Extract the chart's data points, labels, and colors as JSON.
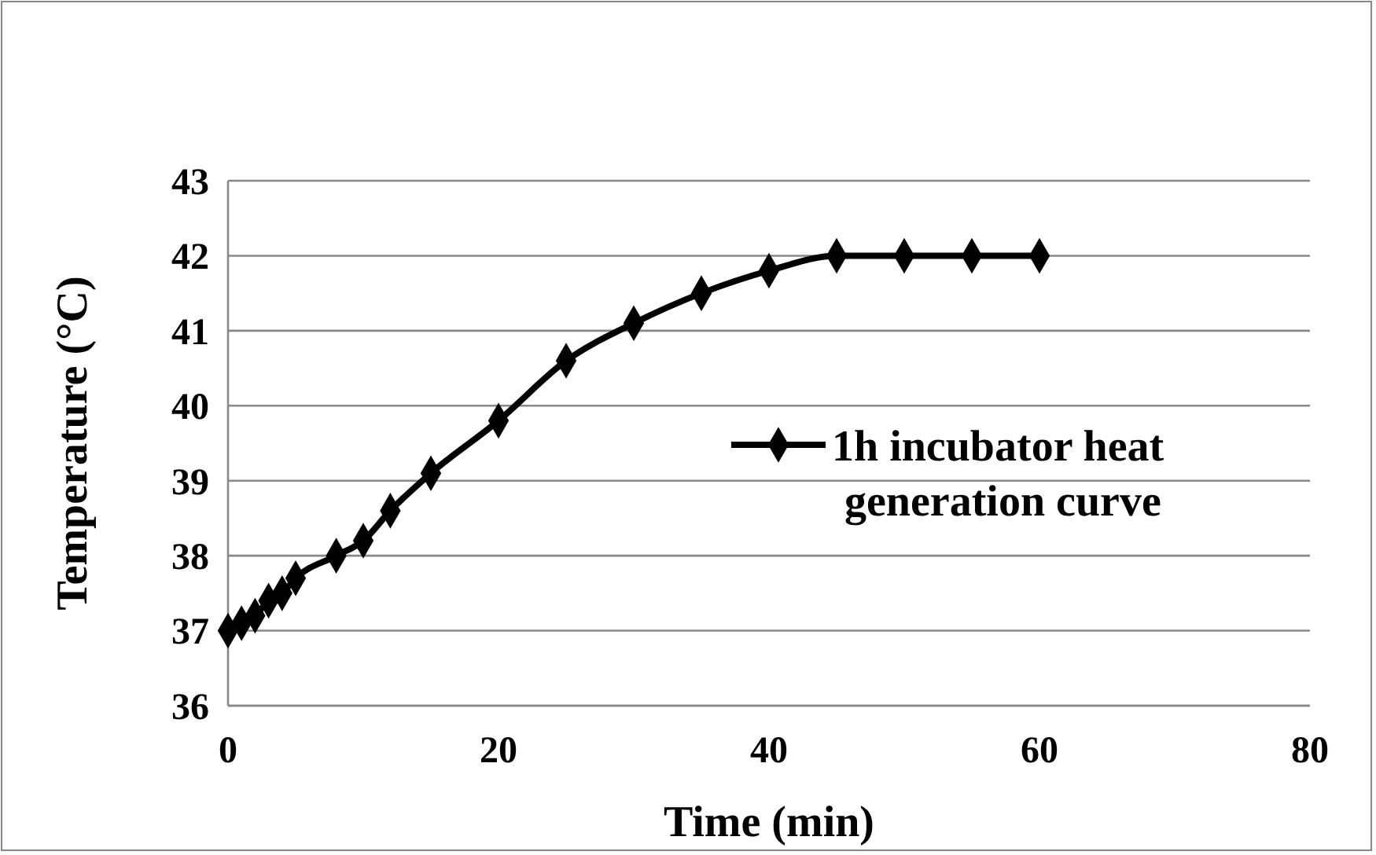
{
  "chart_data": {
    "type": "line",
    "xlabel": "Time (min)",
    "ylabel": "Temperature (°C)",
    "x": [
      0,
      1,
      2,
      3,
      4,
      5,
      8,
      10,
      12,
      15,
      20,
      25,
      30,
      35,
      40,
      45,
      50,
      55,
      60
    ],
    "series": [
      {
        "name": "1h incubator heat generation curve",
        "color": "#000000",
        "values": [
          37,
          37.1,
          37.2,
          37.4,
          37.5,
          37.7,
          38,
          38.2,
          38.6,
          39.1,
          39.8,
          40.6,
          41.1,
          41.5,
          41.8,
          42,
          42,
          42,
          42
        ]
      }
    ],
    "xlim": [
      0,
      80
    ],
    "xticks": [
      0,
      20,
      40,
      60,
      80
    ],
    "ylim": [
      36,
      43
    ],
    "yticks": [
      36,
      37,
      38,
      39,
      40,
      41,
      42,
      43
    ],
    "grid": "y",
    "legend": "right",
    "marker": "diamond",
    "line_style": "solid"
  }
}
